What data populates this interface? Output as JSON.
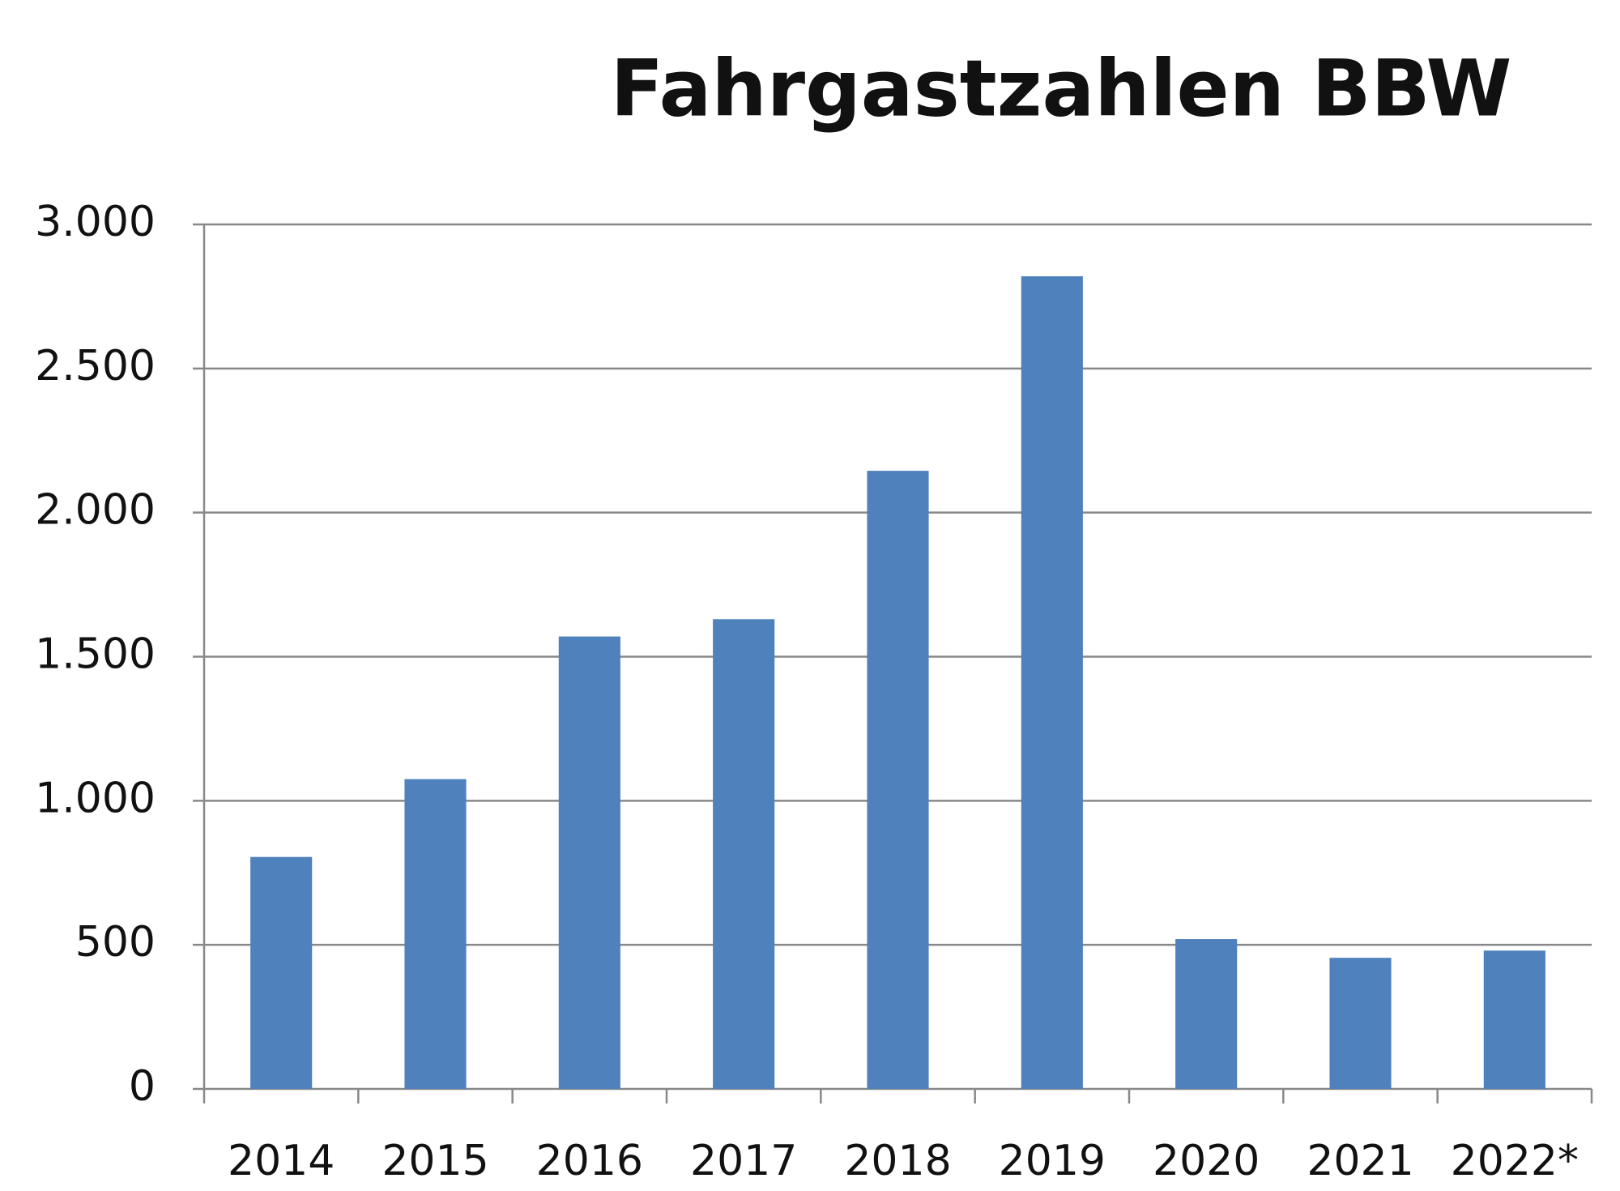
{
  "chart_data": {
    "type": "bar",
    "title": "Fahrgastzahlen BBW",
    "categories": [
      "2014",
      "2015",
      "2016",
      "2017",
      "2018",
      "2019",
      "2020",
      "2021",
      "2022*"
    ],
    "values": [
      805,
      1075,
      1570,
      1630,
      2145,
      2820,
      520,
      455,
      480
    ],
    "color": "#4f81bd",
    "ylim": [
      0,
      3000
    ],
    "yticks": [
      0,
      500,
      {
        "value": 1000,
        "label": "1.000"
      },
      {
        "value": 1500,
        "label": "1.500"
      },
      {
        "value": 2000,
        "label": "2.000"
      },
      {
        "value": 2500,
        "label": "2.500"
      },
      {
        "value": 3000,
        "label": "3.000"
      }
    ],
    "grid": true
  }
}
